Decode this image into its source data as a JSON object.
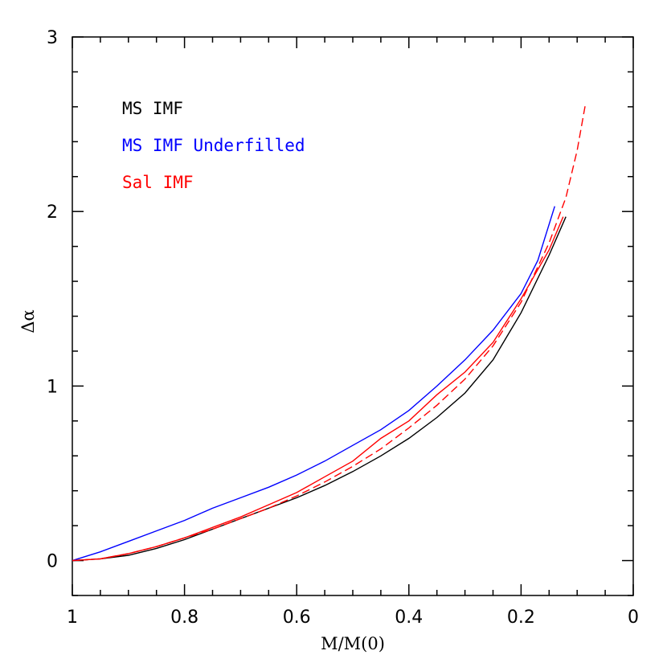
{
  "chart_data": {
    "type": "line",
    "xlabel": "M/M(0)",
    "ylabel": "Δα",
    "xlim": [
      1,
      0
    ],
    "ylim": [
      -0.2,
      3
    ],
    "x_reversed": true,
    "x_ticks": [
      "1",
      "0.8",
      "0.6",
      "0.4",
      "0.2",
      "0"
    ],
    "y_ticks": [
      "0",
      "1",
      "2",
      "3"
    ],
    "grid": false,
    "legend_position": "top-left",
    "series": [
      {
        "name": "MS IMF",
        "color": "#000000",
        "dash": "solid",
        "points": [
          [
            1,
            0
          ],
          [
            0.95,
            0.01
          ],
          [
            0.9,
            0.03
          ],
          [
            0.85,
            0.07
          ],
          [
            0.8,
            0.12
          ],
          [
            0.75,
            0.18
          ],
          [
            0.7,
            0.24
          ],
          [
            0.65,
            0.3
          ],
          [
            0.6,
            0.36
          ],
          [
            0.55,
            0.43
          ],
          [
            0.5,
            0.51
          ],
          [
            0.45,
            0.6
          ],
          [
            0.4,
            0.7
          ],
          [
            0.35,
            0.82
          ],
          [
            0.3,
            0.96
          ],
          [
            0.25,
            1.15
          ],
          [
            0.2,
            1.42
          ],
          [
            0.15,
            1.75
          ],
          [
            0.12,
            1.97
          ]
        ]
      },
      {
        "name": "MS IMF Underfilled",
        "color": "#0000ff",
        "dash": "solid",
        "points": [
          [
            1,
            0
          ],
          [
            0.95,
            0.05
          ],
          [
            0.9,
            0.11
          ],
          [
            0.85,
            0.17
          ],
          [
            0.8,
            0.23
          ],
          [
            0.75,
            0.3
          ],
          [
            0.7,
            0.36
          ],
          [
            0.65,
            0.42
          ],
          [
            0.6,
            0.49
          ],
          [
            0.55,
            0.57
          ],
          [
            0.5,
            0.66
          ],
          [
            0.45,
            0.75
          ],
          [
            0.4,
            0.86
          ],
          [
            0.35,
            1.0
          ],
          [
            0.3,
            1.15
          ],
          [
            0.25,
            1.32
          ],
          [
            0.2,
            1.53
          ],
          [
            0.17,
            1.72
          ],
          [
            0.14,
            2.03
          ]
        ]
      },
      {
        "name": "Sal IMF",
        "color": "#ff0000",
        "dash": "solid",
        "points": [
          [
            1,
            0
          ],
          [
            0.95,
            0.01
          ],
          [
            0.9,
            0.04
          ],
          [
            0.85,
            0.08
          ],
          [
            0.8,
            0.13
          ],
          [
            0.75,
            0.19
          ],
          [
            0.7,
            0.25
          ],
          [
            0.65,
            0.32
          ],
          [
            0.6,
            0.39
          ],
          [
            0.55,
            0.48
          ],
          [
            0.5,
            0.57
          ],
          [
            0.45,
            0.7
          ],
          [
            0.4,
            0.8
          ],
          [
            0.35,
            0.95
          ],
          [
            0.3,
            1.08
          ],
          [
            0.25,
            1.25
          ],
          [
            0.2,
            1.5
          ],
          [
            0.15,
            1.78
          ],
          [
            0.125,
            1.97
          ]
        ]
      },
      {
        "name": "",
        "color": "#ff0000",
        "dash": "dashed",
        "points": [
          [
            1,
            0
          ],
          [
            0.95,
            0.01
          ],
          [
            0.9,
            0.04
          ],
          [
            0.85,
            0.08
          ],
          [
            0.8,
            0.13
          ],
          [
            0.75,
            0.18
          ],
          [
            0.7,
            0.24
          ],
          [
            0.65,
            0.3
          ],
          [
            0.6,
            0.37
          ],
          [
            0.55,
            0.45
          ],
          [
            0.5,
            0.54
          ],
          [
            0.45,
            0.64
          ],
          [
            0.4,
            0.76
          ],
          [
            0.35,
            0.89
          ],
          [
            0.3,
            1.04
          ],
          [
            0.25,
            1.23
          ],
          [
            0.2,
            1.48
          ],
          [
            0.15,
            1.82
          ],
          [
            0.12,
            2.08
          ],
          [
            0.1,
            2.35
          ],
          [
            0.085,
            2.62
          ]
        ]
      }
    ]
  }
}
